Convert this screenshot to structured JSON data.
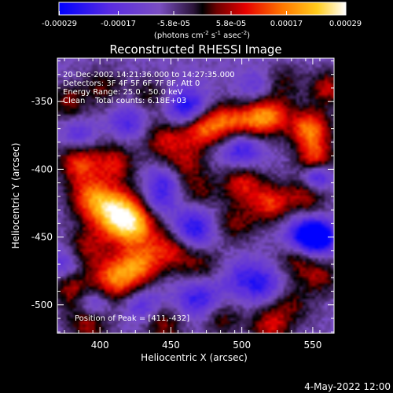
{
  "chart_data": {
    "type": "heatmap",
    "title": "Reconstructed RHESSI Image",
    "xlabel": "Heliocentric X (arcsec)",
    "ylabel": "Heliocentric Y (arcsec)",
    "xlim": [
      370,
      565
    ],
    "ylim": [
      -521,
      -318
    ],
    "x_ticks": [
      400,
      450,
      500,
      550
    ],
    "y_ticks": [
      -350,
      -400,
      -450,
      -500
    ],
    "colorbar": {
      "ticks": [
        "-0.00029",
        "-0.00017",
        "-5.8e-05",
        "5.8e-05",
        "0.00017",
        "0.00029"
      ],
      "tick_values": [
        -0.00029,
        -0.00017,
        -5.8e-05,
        5.8e-05,
        0.00017,
        0.00029
      ],
      "range": [
        -0.00029,
        0.00029
      ],
      "units_prefix": "(photons cm",
      "units_mid": " s",
      "units_mid2": " asec",
      "units_suffix": ")",
      "exp_a": "-2",
      "exp_b": "-1",
      "exp_c": "-2"
    },
    "annotations": [
      "20-Dec-2002 14:21:36.000 to 14:27:35.000",
      "Detectors: 3F 4F 5F 6F 7F 8F, Att 0",
      "Energy Range: 25.0 - 50.0 keV",
      "Clean    Total counts: 6.18E+03"
    ],
    "peak_label": "Position of Peak = [411,-432]",
    "peak": [
      411,
      -432
    ],
    "blobs": [
      {
        "x": 411,
        "y": -432,
        "v": 0.00029,
        "s": 13
      },
      {
        "x": 425,
        "y": -442,
        "v": 0.00022,
        "s": 12
      },
      {
        "x": 393,
        "y": -420,
        "v": 0.00018,
        "s": 11
      },
      {
        "x": 412,
        "y": -480,
        "v": 0.00025,
        "s": 12
      },
      {
        "x": 430,
        "y": -470,
        "v": 0.00018,
        "s": 10
      },
      {
        "x": 390,
        "y": -458,
        "v": 0.00012,
        "s": 10
      },
      {
        "x": 450,
        "y": -458,
        "v": 0.00017,
        "s": 10
      },
      {
        "x": 470,
        "y": -470,
        "v": 0.00012,
        "s": 11
      },
      {
        "x": 380,
        "y": -488,
        "v": 0.00014,
        "s": 10
      },
      {
        "x": 392,
        "y": -512,
        "v": 0.00016,
        "s": 10
      },
      {
        "x": 385,
        "y": -395,
        "v": 0.00019,
        "s": 10
      },
      {
        "x": 410,
        "y": -395,
        "v": 0.00016,
        "s": 10
      },
      {
        "x": 445,
        "y": -378,
        "v": 0.00015,
        "s": 10
      },
      {
        "x": 460,
        "y": -395,
        "v": 0.00013,
        "s": 10
      },
      {
        "x": 470,
        "y": -370,
        "v": 0.00021,
        "s": 10
      },
      {
        "x": 487,
        "y": -365,
        "v": 0.00018,
        "s": 10
      },
      {
        "x": 505,
        "y": -365,
        "v": 0.00016,
        "s": 10
      },
      {
        "x": 520,
        "y": -360,
        "v": 0.00022,
        "s": 10
      },
      {
        "x": 548,
        "y": -370,
        "v": 0.00025,
        "s": 10
      },
      {
        "x": 552,
        "y": -392,
        "v": 0.0002,
        "s": 9
      },
      {
        "x": 500,
        "y": -410,
        "v": 0.00017,
        "s": 10
      },
      {
        "x": 520,
        "y": -425,
        "v": 0.00019,
        "s": 10
      },
      {
        "x": 545,
        "y": -420,
        "v": 0.00014,
        "s": 10
      },
      {
        "x": 495,
        "y": -440,
        "v": 0.00012,
        "s": 10
      },
      {
        "x": 470,
        "y": -415,
        "v": 0.00011,
        "s": 9
      },
      {
        "x": 540,
        "y": -465,
        "v": 0.00014,
        "s": 10
      },
      {
        "x": 555,
        "y": -480,
        "v": 0.00012,
        "s": 9
      },
      {
        "x": 535,
        "y": -500,
        "v": 0.0001,
        "s": 10
      },
      {
        "x": 520,
        "y": -516,
        "v": 0.00016,
        "s": 10
      },
      {
        "x": 485,
        "y": -510,
        "v": 0.00011,
        "s": 10
      },
      {
        "x": 445,
        "y": -515,
        "v": 0.00013,
        "s": 10
      },
      {
        "x": 378,
        "y": -350,
        "v": 0.00012,
        "s": 9
      },
      {
        "x": 402,
        "y": -340,
        "v": 0.0001,
        "s": 10
      },
      {
        "x": 435,
        "y": -345,
        "v": 9e-05,
        "s": 9
      },
      {
        "x": 530,
        "y": -335,
        "v": 9e-05,
        "s": 9
      },
      {
        "x": 560,
        "y": -340,
        "v": 0.00015,
        "s": 9
      },
      {
        "x": 465,
        "y": -445,
        "v": -0.00018,
        "s": 11
      },
      {
        "x": 445,
        "y": -410,
        "v": -0.00012,
        "s": 9
      },
      {
        "x": 545,
        "y": -450,
        "v": -0.00024,
        "s": 10
      },
      {
        "x": 555,
        "y": -450,
        "v": -0.0002,
        "s": 8
      },
      {
        "x": 462,
        "y": -355,
        "v": -0.0002,
        "s": 10
      },
      {
        "x": 500,
        "y": -385,
        "v": -0.00016,
        "s": 10
      },
      {
        "x": 420,
        "y": -365,
        "v": -0.00012,
        "s": 9
      },
      {
        "x": 470,
        "y": -495,
        "v": -0.00016,
        "s": 11
      },
      {
        "x": 500,
        "y": -480,
        "v": -0.0001,
        "s": 10
      },
      {
        "x": 515,
        "y": -485,
        "v": -0.00013,
        "s": 9
      },
      {
        "x": 553,
        "y": -405,
        "v": -0.0002,
        "s": 7
      },
      {
        "x": 385,
        "y": -375,
        "v": -0.0001,
        "s": 8
      },
      {
        "x": 395,
        "y": -500,
        "v": -0.00015,
        "s": 8
      },
      {
        "x": 375,
        "y": -470,
        "v": -0.00011,
        "s": 8
      },
      {
        "x": 430,
        "y": -500,
        "v": -0.00012,
        "s": 9
      },
      {
        "x": 510,
        "y": -340,
        "v": -8e-05,
        "s": 9
      },
      {
        "x": 440,
        "y": -425,
        "v": -0.0001,
        "s": 8
      }
    ]
  },
  "footer": {
    "date": "4-May-2022 12:00"
  },
  "colors": {
    "background": "#000000",
    "text": "#ffffff"
  }
}
